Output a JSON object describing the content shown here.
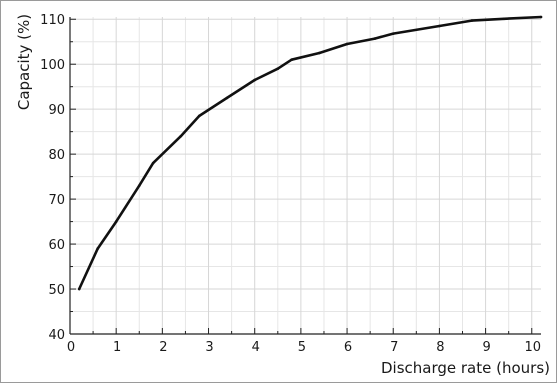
{
  "chart_data": {
    "type": "line",
    "title": "",
    "xlabel": "Discharge rate  (hours)",
    "ylabel": "Capacity (%)",
    "xlim": [
      0,
      10.2
    ],
    "ylim": [
      40,
      110.5
    ],
    "x_ticks": [
      0,
      1,
      2,
      3,
      4,
      5,
      6,
      7,
      8,
      9,
      10
    ],
    "y_ticks": [
      40,
      50,
      60,
      70,
      80,
      90,
      100,
      110
    ],
    "grid": true,
    "legend": "none",
    "colors": {
      "line": "#111111",
      "grid": "#d6d6d6",
      "axis": "#222222"
    },
    "series": [
      {
        "x": [
          0.2,
          0.6,
          1,
          1.5,
          1.8,
          2.4,
          2.8,
          3.4,
          4,
          4.5,
          4.8,
          5.4,
          6,
          6.6,
          7,
          8,
          8.7,
          9.4,
          10.2
        ],
        "values": [
          50,
          59,
          65,
          73,
          78,
          84,
          88.5,
          92.5,
          96.5,
          99,
          101,
          102.5,
          104.5,
          105.7,
          106.8,
          108.5,
          109.7,
          110.1,
          110.5
        ]
      }
    ]
  }
}
